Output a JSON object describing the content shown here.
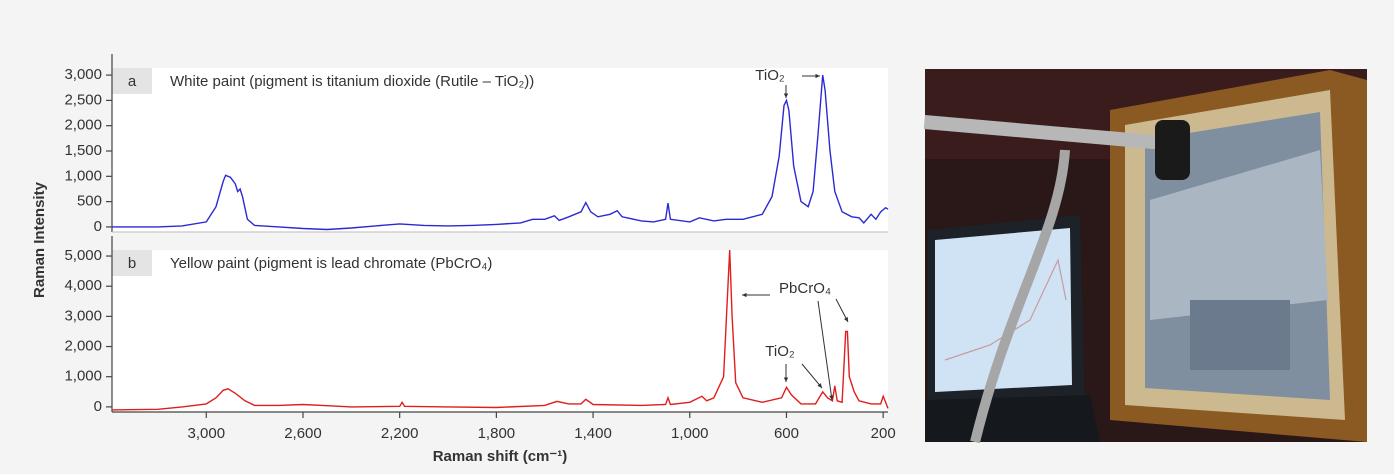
{
  "y_axis_label": "Raman Intensity",
  "x_axis_label": "Raman shift (cm⁻¹)",
  "chart_data": [
    {
      "type": "line",
      "panel": "a",
      "title": "White paint (pigment is titanium dioxide (Rutile – TiO₂))",
      "color": "#2a2ad2",
      "xlim": [
        3390,
        180
      ],
      "ylim": [
        -100,
        3140
      ],
      "yticks": [
        0,
        500,
        {
          "value": 1000,
          "label": "1,000"
        },
        {
          "value": 1500,
          "label": "1,500"
        },
        {
          "value": 2000,
          "label": "2,000"
        },
        {
          "value": 2500,
          "label": "2,500"
        },
        {
          "value": 3000,
          "label": "3,000"
        }
      ],
      "annotations": [
        "TiO₂"
      ],
      "x": [
        3390,
        3200,
        3100,
        3000,
        2960,
        2930,
        2920,
        2900,
        2880,
        2870,
        2860,
        2850,
        2830,
        2800,
        2700,
        2600,
        2500,
        2400,
        2300,
        2200,
        2100,
        2000,
        1900,
        1800,
        1700,
        1650,
        1600,
        1560,
        1540,
        1500,
        1450,
        1430,
        1410,
        1380,
        1330,
        1300,
        1280,
        1200,
        1150,
        1100,
        1090,
        1080,
        1000,
        960,
        900,
        850,
        780,
        700,
        660,
        630,
        610,
        600,
        590,
        570,
        540,
        510,
        490,
        470,
        450,
        440,
        420,
        400,
        370,
        330,
        300,
        280,
        250,
        230,
        210,
        190,
        180
      ],
      "values": [
        0,
        0,
        20,
        100,
        400,
        900,
        1020,
        980,
        850,
        700,
        750,
        600,
        150,
        30,
        0,
        -30,
        -50,
        -20,
        20,
        60,
        30,
        20,
        30,
        50,
        80,
        150,
        150,
        220,
        130,
        200,
        300,
        480,
        300,
        200,
        250,
        320,
        200,
        120,
        100,
        150,
        470,
        150,
        100,
        180,
        120,
        150,
        150,
        250,
        600,
        1400,
        2400,
        2500,
        2300,
        1200,
        500,
        400,
        700,
        1800,
        3000,
        2700,
        1500,
        700,
        300,
        200,
        180,
        80,
        250,
        150,
        300,
        380,
        350
      ]
    },
    {
      "type": "line",
      "panel": "b",
      "title": "Yellow paint (pigment is lead chromate (PbCrO₄)",
      "color": "#e01e1e",
      "xlim": [
        3390,
        180
      ],
      "ylim": [
        -170,
        5200
      ],
      "xticks": [
        {
          "value": 3000,
          "label": "3,000"
        },
        {
          "value": 2600,
          "label": "2,600"
        },
        {
          "value": 2200,
          "label": "2,200"
        },
        {
          "value": 1800,
          "label": "1,800"
        },
        {
          "value": 1400,
          "label": "1,400"
        },
        {
          "value": 1000,
          "label": "1,000"
        },
        600,
        200
      ],
      "yticks": [
        0,
        {
          "value": 1000,
          "label": "1,000"
        },
        {
          "value": 2000,
          "label": "2,000"
        },
        {
          "value": 3000,
          "label": "3,000"
        },
        {
          "value": 4000,
          "label": "4,000"
        },
        {
          "value": 5000,
          "label": "5,000"
        }
      ],
      "annotations": [
        "PbCrO₄",
        "TiO₂"
      ],
      "x": [
        3390,
        3200,
        3100,
        3000,
        2960,
        2930,
        2910,
        2880,
        2840,
        2800,
        2700,
        2600,
        2500,
        2400,
        2200,
        2190,
        2180,
        2000,
        1800,
        1600,
        1550,
        1500,
        1450,
        1430,
        1400,
        1200,
        1100,
        1090,
        1080,
        1000,
        950,
        930,
        900,
        860,
        845,
        835,
        825,
        810,
        780,
        700,
        620,
        600,
        580,
        540,
        480,
        450,
        430,
        410,
        400,
        390,
        370,
        355,
        348,
        340,
        320,
        300,
        250,
        210,
        200,
        190,
        180
      ],
      "values": [
        -100,
        -80,
        0,
        100,
        300,
        550,
        600,
        450,
        200,
        50,
        50,
        80,
        40,
        0,
        20,
        150,
        20,
        0,
        -20,
        50,
        180,
        100,
        100,
        250,
        80,
        50,
        80,
        300,
        80,
        150,
        350,
        200,
        300,
        1000,
        3500,
        5200,
        3000,
        800,
        300,
        150,
        300,
        650,
        400,
        100,
        100,
        500,
        300,
        200,
        700,
        200,
        150,
        2500,
        2500,
        1000,
        500,
        200,
        100,
        100,
        350,
        150,
        -50
      ]
    }
  ]
}
